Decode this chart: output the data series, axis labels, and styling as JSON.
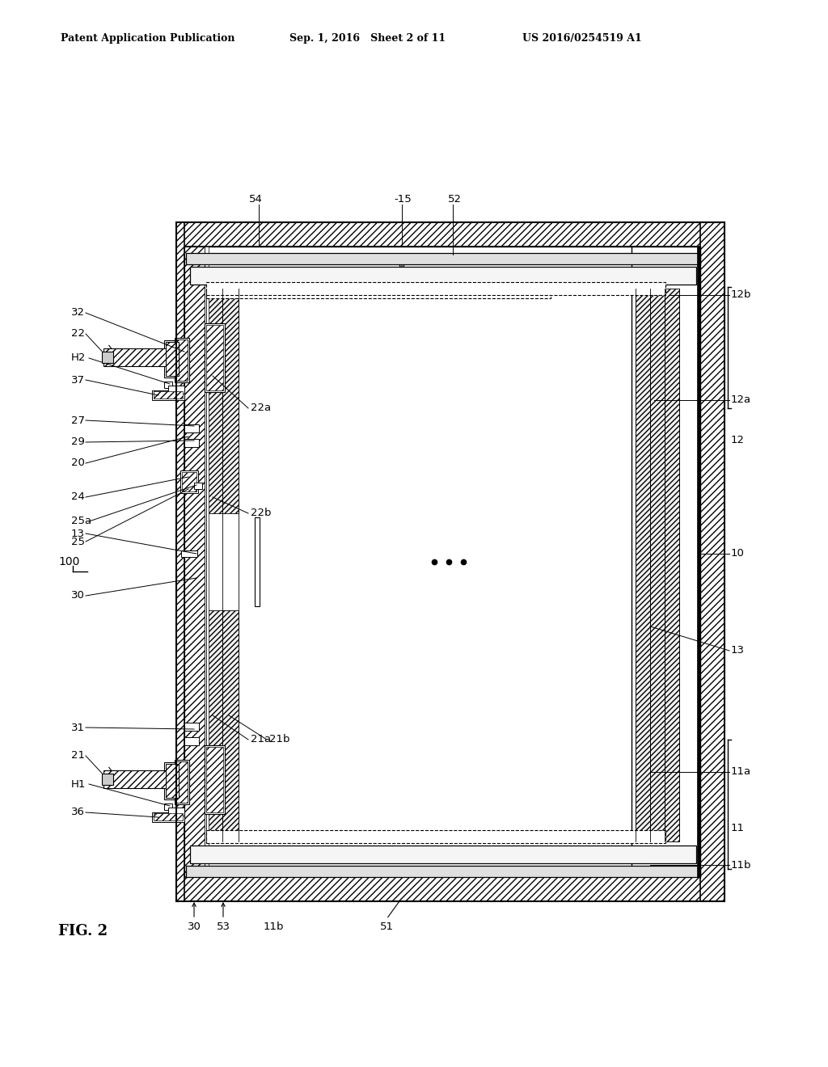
{
  "bg_color": "#ffffff",
  "header_left": "Patent Application Publication",
  "header_mid": "Sep. 1, 2016   Sheet 2 of 11",
  "header_right": "US 2016/0254519 A1",
  "fig_label": "FIG. 2",
  "ref_label": "100"
}
